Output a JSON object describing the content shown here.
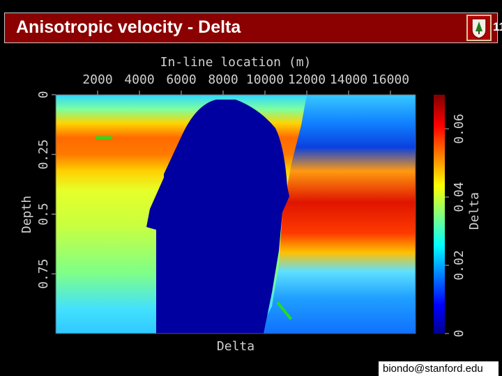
{
  "header": {
    "title": "Anisotropic velocity - Delta",
    "slide_number": "11",
    "logo_icon": "stanford-seal-icon",
    "accent_color": "#8b0000"
  },
  "footer": {
    "email": "biondo@stanford.edu"
  },
  "chart_data": {
    "type": "heatmap",
    "title": "In-line location (m)",
    "xlabel": "Delta",
    "ylabel": "Depth",
    "x_ticks": [
      "2000",
      "4000",
      "6000",
      "8000",
      "10000",
      "12000",
      "14000",
      "16000"
    ],
    "y_ticks": [
      "0",
      "0.25",
      "0.5",
      "0.75"
    ],
    "colorbar": {
      "label": "Delta",
      "ticks": [
        "0",
        "0.02",
        "0.04",
        "0.06"
      ],
      "range": [
        0,
        0.07
      ],
      "colormap": "jet"
    },
    "xlim": [
      0,
      17200
    ],
    "ylim": [
      0,
      1.0
    ],
    "annotations": [
      {
        "name": "green-marker-shallow",
        "color": "#22dd22",
        "x": [
          1900,
          2700
        ],
        "y": [
          0.18,
          0.18
        ]
      },
      {
        "name": "green-marker-deep",
        "color": "#22dd22",
        "x": [
          10600,
          11250
        ],
        "y": [
          0.87,
          0.94
        ]
      }
    ]
  }
}
